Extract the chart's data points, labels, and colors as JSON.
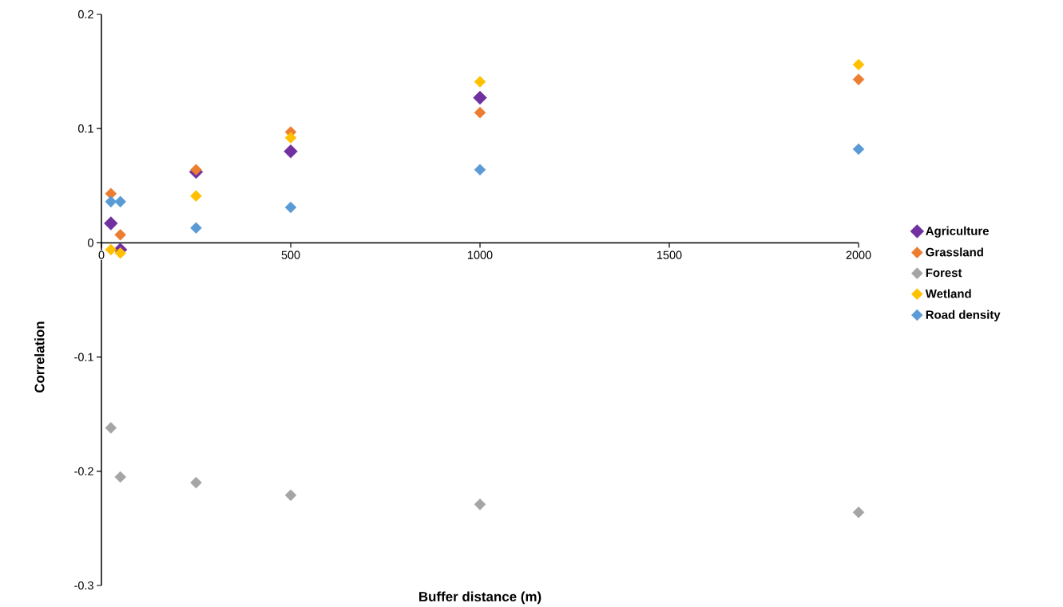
{
  "chart_data": {
    "type": "scatter",
    "xlabel": "Buffer distance (m)",
    "ylabel": "Correlation",
    "x": [
      25,
      50,
      250,
      500,
      1000,
      2000
    ],
    "series": [
      {
        "name": "Agriculture",
        "color": "#7030a0",
        "values": [
          0.017,
          -0.006,
          0.062,
          0.08,
          0.127,
          null
        ]
      },
      {
        "name": "Grassland",
        "color": "#ed7d31",
        "values": [
          0.043,
          0.007,
          0.064,
          0.097,
          0.114,
          0.143
        ]
      },
      {
        "name": "Forest",
        "color": "#a5a5a5",
        "values": [
          -0.162,
          -0.205,
          -0.21,
          -0.221,
          -0.229,
          -0.236
        ]
      },
      {
        "name": "Wetland",
        "color": "#ffc000",
        "values": [
          -0.006,
          -0.009,
          0.041,
          0.092,
          0.141,
          0.156
        ]
      },
      {
        "name": "Road density",
        "color": "#5b9bd5",
        "values": [
          0.036,
          0.036,
          0.013,
          0.031,
          0.064,
          0.082
        ]
      }
    ],
    "xlim": [
      0,
      2000
    ],
    "ylim": [
      -0.3,
      0.2
    ],
    "xticks": [
      0,
      500,
      1000,
      1500,
      2000
    ],
    "yticks": [
      -0.3,
      -0.2,
      -0.1,
      0,
      0.1,
      0.2
    ],
    "legend": "right",
    "marker": "diamond",
    "grid": false
  }
}
